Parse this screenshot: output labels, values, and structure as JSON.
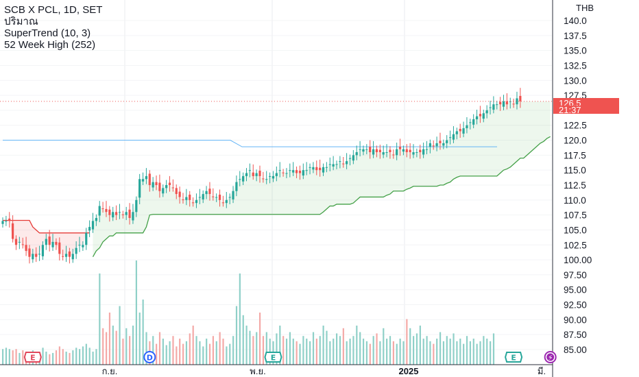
{
  "legend": {
    "symbol_line": "SCB X PCL, 1D, SET",
    "volume_label": "ปริมาณ",
    "indicator_1": "SuperTrend (10, 3)",
    "indicator_2": "52 Week High (252)"
  },
  "last_price_tag": {
    "price": "126.5",
    "countdown": "21:37"
  },
  "colors": {
    "up": "#26a69a",
    "down": "#ef5350",
    "supertrend_up": "#43a047",
    "supertrend_down": "#e53935",
    "high52": "#64b5f6",
    "grid": "#e9ebef",
    "event_e": "#e0475b",
    "event_d": "#2962ff",
    "event_e_green": "#26a69a",
    "event_flash": "#9c27b0"
  },
  "chart_data": {
    "type": "candlestick",
    "title": "SCB X PCL, 1D, SET",
    "currency": "THB",
    "ylim": [
      83.0,
      141.0
    ],
    "y_ticks": [
      "140.0",
      "137.5",
      "135.0",
      "132.5",
      "130.0",
      "127.5",
      "122.5",
      "120.0",
      "117.5",
      "115.0",
      "112.5",
      "110.0",
      "107.5",
      "105.0",
      "102.5",
      "100.00",
      "97.50",
      "95.00",
      "92.50",
      "90.00",
      "87.50",
      "85.00"
    ],
    "x_labels": [
      "ก.ย.",
      "พ.ย.",
      "2025",
      "มี."
    ],
    "last_price": 126.5,
    "close_series": [
      106.5,
      106.5,
      106.5,
      103.5,
      102.5,
      103,
      102.5,
      101.5,
      100.5,
      101,
      100.5,
      101,
      102.5,
      103.5,
      102.5,
      103,
      102.5,
      101,
      100.5,
      101,
      100.5,
      101,
      102,
      102.5,
      102.5,
      104.5,
      105.5,
      106.5,
      107,
      109,
      108.5,
      108,
      107.5,
      108,
      107.5,
      108,
      107.5,
      108,
      107,
      108,
      110,
      113.5,
      113.5,
      114,
      112.5,
      113,
      112.5,
      111.5,
      112,
      112.5,
      112.5,
      112,
      111,
      110.5,
      110,
      110.5,
      110,
      109.5,
      110,
      110.5,
      111,
      111.5,
      111,
      110.5,
      110.5,
      110,
      109.5,
      110,
      110.5,
      111.5,
      113,
      113.5,
      114,
      114.5,
      115,
      114,
      114.5,
      114,
      113.5,
      113.5,
      114,
      114,
      114.5,
      115,
      114.5,
      114.5,
      115,
      115,
      114.5,
      114.5,
      115,
      115,
      115.5,
      115.5,
      115,
      115,
      115.5,
      115.5,
      116,
      116,
      116,
      116.5,
      116,
      116.5,
      117,
      117.5,
      118,
      118.5,
      118.5,
      118.5,
      118,
      118.5,
      118,
      118,
      118,
      118,
      118,
      117.5,
      118.5,
      118.5,
      118.5,
      118,
      118,
      118,
      118,
      118,
      118.5,
      118.5,
      119.5,
      119,
      119.5,
      119.5,
      119.5,
      120,
      120.5,
      121,
      121.5,
      121.5,
      122,
      122.5,
      123,
      123.5,
      124,
      124,
      124.5,
      125,
      125.5,
      126,
      126,
      126,
      126.5,
      126,
      126.5,
      126,
      127,
      126.5
    ],
    "supertrend_down": [
      106.6,
      106.6,
      106.6,
      106.6,
      106.6,
      106.6,
      106.6,
      106.6,
      106.6,
      105.5,
      105.0,
      104.5,
      104.5,
      104.5,
      104.5,
      104.5,
      104.5,
      104.5,
      104.5,
      104.5,
      104.5,
      104.5,
      104.5,
      104.5,
      104.5,
      104.5,
      104.5
    ],
    "supertrend_up": [
      100.5,
      101.5,
      102,
      103,
      103.5,
      104,
      104,
      104.5,
      104.5,
      104.5,
      104.5,
      104.5,
      104.5,
      104.5,
      104.5,
      104.5,
      105.5,
      107.5,
      107.6,
      107.6,
      107.6,
      107.6,
      107.6,
      107.6,
      107.6,
      107.6,
      107.6,
      107.6,
      107.6,
      107.6,
      107.6,
      107.6,
      107.6,
      107.6,
      107.6,
      107.6,
      107.6,
      107.6,
      107.6,
      107.6,
      107.6,
      107.6,
      107.6,
      107.6,
      107.6,
      107.6,
      107.6,
      107.6,
      107.6,
      107.6,
      107.6,
      107.6,
      107.6,
      107.6,
      107.6,
      107.6,
      107.6,
      107.6,
      107.6,
      107.6,
      107.6,
      107.6,
      107.6,
      107.6,
      107.6,
      107.6,
      107.6,
      107.6,
      107.6,
      108,
      108.5,
      109,
      109,
      109.3,
      109.3,
      109.3,
      109.3,
      109.3,
      109.5,
      110,
      110.5,
      110.5,
      110.5,
      110.5,
      110.5,
      110.5,
      110.5,
      110.5,
      110.8,
      111,
      111.5,
      111.5,
      111.5,
      111.5,
      111.8,
      112,
      112.3,
      112.3,
      112.3,
      112.3,
      112.3,
      112.3,
      112.3,
      112.3,
      112.5,
      112.5,
      112.8,
      113,
      113.5,
      113.8,
      114,
      114,
      114,
      114,
      114,
      114,
      114,
      114,
      114,
      114,
      114,
      114,
      114.5,
      115,
      115.2,
      115.5,
      116,
      116.5,
      117,
      117,
      117.5,
      118,
      118.5,
      119,
      119.5,
      119.8,
      120.3,
      120.6
    ],
    "high52": [
      {
        "x": 0,
        "y": 120.0
      },
      {
        "x": 29,
        "y": 120.0
      },
      {
        "x": 30.5,
        "y": 118.9
      },
      {
        "x": 63,
        "y": 118.9
      }
    ],
    "volume": [
      12,
      13,
      12,
      11,
      12,
      9,
      11,
      10,
      8,
      11,
      10,
      9,
      13,
      10,
      8,
      9,
      11,
      14,
      12,
      10,
      9,
      11,
      13,
      12,
      14,
      16,
      13,
      10,
      12,
      70,
      28,
      25,
      40,
      30,
      26,
      45,
      20,
      28,
      22,
      30,
      80,
      40,
      50,
      25,
      18,
      22,
      16,
      25,
      20,
      15,
      18,
      22,
      14,
      20,
      16,
      18,
      24,
      30,
      22,
      18,
      14,
      20,
      16,
      22,
      18,
      25,
      20,
      14,
      16,
      22,
      45,
      70,
      38,
      30,
      26,
      22,
      25,
      40,
      22,
      25,
      20,
      18,
      24,
      30,
      22,
      20,
      25,
      20,
      18,
      16,
      22,
      20,
      18,
      25,
      20,
      22,
      30,
      26,
      18,
      20,
      24,
      22,
      28,
      18,
      20,
      22,
      30,
      25,
      20,
      18,
      16,
      22,
      24,
      18,
      28,
      20,
      22,
      18,
      16,
      20,
      18,
      35,
      28,
      22,
      24,
      30,
      20,
      22,
      18,
      16,
      20,
      25,
      18,
      22,
      20,
      24,
      18,
      20,
      16,
      22,
      18,
      20,
      16,
      18,
      22,
      20,
      18,
      24
    ],
    "events": [
      {
        "label": "E",
        "x": 4.5,
        "kind": "earnings-red"
      },
      {
        "label": "D",
        "x": 22,
        "kind": "dividend"
      },
      {
        "label": "E",
        "x": 40.5,
        "kind": "earnings-green"
      },
      {
        "label": "E",
        "x": 76.5,
        "kind": "earnings-green"
      },
      {
        "label": "⚡",
        "x": 82,
        "kind": "flash"
      }
    ]
  }
}
